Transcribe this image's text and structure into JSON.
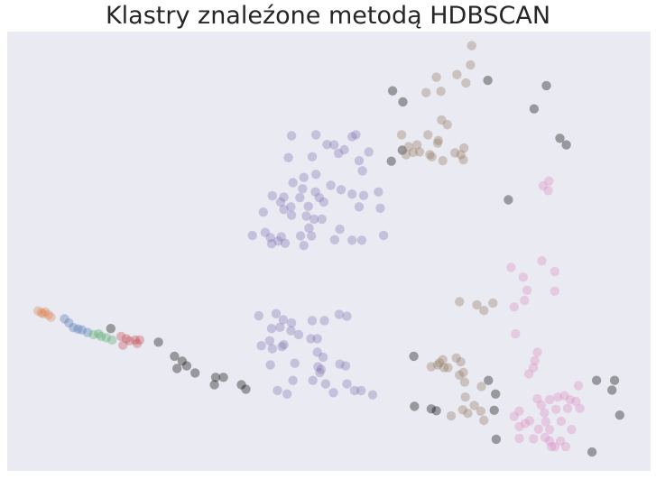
{
  "chart_data": {
    "type": "scatter",
    "title": "Klastry znaleźone metodą HDBSCAN",
    "xlabel": "",
    "ylabel": "",
    "grid": false,
    "axes_visible": false,
    "xlim": [
      0,
      100
    ],
    "ylim": [
      0,
      100
    ],
    "background": "#eaeaf2",
    "point_alpha": 0.35,
    "series": [
      {
        "cluster": "noise",
        "color": "#000000",
        "points": [
          [
            61.5,
            84.0
          ],
          [
            59.9,
            86.5
          ],
          [
            74.7,
            88.9
          ],
          [
            83.8,
            87.7
          ],
          [
            81.9,
            82.4
          ],
          [
            59.7,
            70.5
          ],
          [
            61.4,
            73.0
          ],
          [
            85.9,
            75.7
          ],
          [
            86.9,
            74.2
          ],
          [
            77.9,
            61.7
          ],
          [
            23.5,
            29.3
          ],
          [
            26.0,
            26.1
          ],
          [
            27.2,
            25.0
          ],
          [
            27.9,
            23.9
          ],
          [
            26.4,
            23.3
          ],
          [
            29.2,
            22.3
          ],
          [
            32.4,
            21.3
          ],
          [
            33.6,
            21.3
          ],
          [
            32.2,
            19.6
          ],
          [
            36.4,
            19.6
          ],
          [
            37.1,
            18.6
          ],
          [
            16.1,
            32.4
          ],
          [
            63.2,
            26.1
          ],
          [
            74.8,
            20.6
          ],
          [
            75.9,
            17.5
          ],
          [
            63.3,
            14.7
          ],
          [
            65.9,
            14.1
          ],
          [
            66.7,
            13.7
          ],
          [
            75.7,
            13.8
          ],
          [
            76.0,
            7.2
          ],
          [
            91.6,
            20.6
          ],
          [
            94.4,
            20.6
          ],
          [
            94.0,
            18.4
          ],
          [
            95.2,
            12.7
          ],
          [
            90.9,
            4.3
          ]
        ]
      },
      {
        "cluster": "0",
        "color": "#dd8452",
        "points": [
          [
            4.8,
            36.4
          ],
          [
            5.3,
            36.0
          ],
          [
            5.9,
            36.2
          ],
          [
            6.4,
            35.5
          ],
          [
            5.6,
            35.8
          ],
          [
            6.8,
            35.0
          ]
        ]
      },
      {
        "cluster": "1",
        "color": "#4c72b0",
        "points": [
          [
            8.9,
            34.6
          ],
          [
            9.6,
            33.7
          ],
          [
            10.3,
            32.6
          ],
          [
            11.0,
            32.3
          ],
          [
            11.6,
            32.1
          ],
          [
            12.5,
            31.5
          ]
        ]
      },
      {
        "cluster": "2",
        "color": "#55a868",
        "points": [
          [
            13.4,
            31.0
          ],
          [
            14.2,
            31.2
          ],
          [
            14.6,
            30.6
          ],
          [
            15.4,
            30.3
          ],
          [
            16.3,
            29.8
          ]
        ]
      },
      {
        "cluster": "3",
        "color": "#c44e52",
        "points": [
          [
            17.7,
            30.6
          ],
          [
            18.5,
            30.1
          ],
          [
            19.0,
            29.6
          ],
          [
            19.9,
            29.8
          ],
          [
            20.6,
            29.8
          ],
          [
            18.0,
            28.6
          ],
          [
            20.2,
            29.0
          ]
        ]
      },
      {
        "cluster": "4",
        "color": "#8172b3",
        "points": [
          [
            44.2,
            76.3
          ],
          [
            48.0,
            76.5
          ],
          [
            53.6,
            76.1
          ],
          [
            54.2,
            76.5
          ],
          [
            49.7,
            74.3
          ],
          [
            50.8,
            74.2
          ],
          [
            52.4,
            73.1
          ],
          [
            51.5,
            72.3
          ],
          [
            56.2,
            72.6
          ],
          [
            54.7,
            70.6
          ],
          [
            47.4,
            71.5
          ],
          [
            43.7,
            71.3
          ],
          [
            55.2,
            68.3
          ],
          [
            48.0,
            67.5
          ],
          [
            46.1,
            66.8
          ],
          [
            44.4,
            65.6
          ],
          [
            45.9,
            64.2
          ],
          [
            50.3,
            65.0
          ],
          [
            51.9,
            64.0
          ],
          [
            47.9,
            63.5
          ],
          [
            53.6,
            63.0
          ],
          [
            55.4,
            62.7
          ],
          [
            57.7,
            63.5
          ],
          [
            43.0,
            62.3
          ],
          [
            45.5,
            62.2
          ],
          [
            48.5,
            62.2
          ],
          [
            41.2,
            62.6
          ],
          [
            42.5,
            61.2
          ],
          [
            44.1,
            60.1
          ],
          [
            43.0,
            59.5
          ],
          [
            46.8,
            60.2
          ],
          [
            49.2,
            61.2
          ],
          [
            54.7,
            60.1
          ],
          [
            58.0,
            59.8
          ],
          [
            39.8,
            58.9
          ],
          [
            44.2,
            58.2
          ],
          [
            46.5,
            58.0
          ],
          [
            47.7,
            57.3
          ],
          [
            48.9,
            57.3
          ],
          [
            51.7,
            55.0
          ],
          [
            50.9,
            52.6
          ],
          [
            38.1,
            53.6
          ],
          [
            40.1,
            54.3
          ],
          [
            40.9,
            53.1
          ],
          [
            42.6,
            53.3
          ],
          [
            43.2,
            51.8
          ],
          [
            45.6,
            53.5
          ],
          [
            46.1,
            51.3
          ],
          [
            46.9,
            55.3
          ],
          [
            47.3,
            53.5
          ],
          [
            53.6,
            52.5
          ],
          [
            55.1,
            52.5
          ],
          [
            58.5,
            53.6
          ],
          [
            41.1,
            51.7
          ],
          [
            42.1,
            52.3
          ],
          [
            39.1,
            35.3
          ],
          [
            41.8,
            35.8
          ],
          [
            42.9,
            34.4
          ],
          [
            44.2,
            33.7
          ],
          [
            47.4,
            34.2
          ],
          [
            49.3,
            34.2
          ],
          [
            51.6,
            35.6
          ],
          [
            52.8,
            35.2
          ],
          [
            41.1,
            32.4
          ],
          [
            42.4,
            32.7
          ],
          [
            44.1,
            31.9
          ],
          [
            45.3,
            31.0
          ],
          [
            47.2,
            30.1
          ],
          [
            48.2,
            30.1
          ],
          [
            40.8,
            29.6
          ],
          [
            43.0,
            28.7
          ],
          [
            39.5,
            28.5
          ],
          [
            41.2,
            27.8
          ],
          [
            42.7,
            28.3
          ],
          [
            48.2,
            27.0
          ],
          [
            49.1,
            25.9
          ],
          [
            40.9,
            24.1
          ],
          [
            44.7,
            24.5
          ],
          [
            48.3,
            23.7
          ],
          [
            48.8,
            23.1
          ],
          [
            51.7,
            24.3
          ],
          [
            52.6,
            23.9
          ],
          [
            48.6,
            22.4
          ],
          [
            47.5,
            20.6
          ],
          [
            44.4,
            20.6
          ],
          [
            49.5,
            19.8
          ],
          [
            52.8,
            19.8
          ],
          [
            54.0,
            18.3
          ],
          [
            55.0,
            18.3
          ],
          [
            42.0,
            18.3
          ],
          [
            43.5,
            17.5
          ],
          [
            50.7,
            17.8
          ],
          [
            56.8,
            17.3
          ]
        ]
      },
      {
        "cluster": "5",
        "color": "#937860",
        "points": [
          [
            72.2,
            96.8
          ],
          [
            72.0,
            92.4
          ],
          [
            69.9,
            90.2
          ],
          [
            71.3,
            88.3
          ],
          [
            66.7,
            89.6
          ],
          [
            67.4,
            86.4
          ],
          [
            65.1,
            86.1
          ],
          [
            67.5,
            79.9
          ],
          [
            68.4,
            78.8
          ],
          [
            61.3,
            76.5
          ],
          [
            65.4,
            76.5
          ],
          [
            67.0,
            75.2
          ],
          [
            63.7,
            74.2
          ],
          [
            64.1,
            72.6
          ],
          [
            65.7,
            72.0
          ],
          [
            62.0,
            72.0
          ],
          [
            63.1,
            72.5
          ],
          [
            69.6,
            72.4
          ],
          [
            71.0,
            73.5
          ],
          [
            70.5,
            72.0
          ],
          [
            66.0,
            71.5
          ],
          [
            67.7,
            70.6
          ],
          [
            70.9,
            70.8
          ],
          [
            66.9,
            74.6
          ],
          [
            62.4,
            73.8
          ],
          [
            70.3,
            38.5
          ],
          [
            73.0,
            37.8
          ],
          [
            75.5,
            38.2
          ],
          [
            74.1,
            36.5
          ],
          [
            69.8,
            25.7
          ],
          [
            70.5,
            24.8
          ],
          [
            67.2,
            24.6
          ],
          [
            67.7,
            25.3
          ],
          [
            66.9,
            24.1
          ],
          [
            65.9,
            23.7
          ],
          [
            68.5,
            23.5
          ],
          [
            67.9,
            23.5
          ],
          [
            70.3,
            21.8
          ],
          [
            70.9,
            22.4
          ],
          [
            71.1,
            20.2
          ],
          [
            73.7,
            19.2
          ],
          [
            71.2,
            16.8
          ],
          [
            72.6,
            14.9
          ],
          [
            73.6,
            13.6
          ],
          [
            71.6,
            13.1
          ],
          [
            70.8,
            13.9
          ],
          [
            69.0,
            12.5
          ],
          [
            74.1,
            11.5
          ]
        ]
      },
      {
        "cluster": "6",
        "color": "#da8bc3",
        "points": [
          [
            83.3,
            64.9
          ],
          [
            84.2,
            66.0
          ],
          [
            84.1,
            63.8
          ],
          [
            78.3,
            46.3
          ],
          [
            80.2,
            44.1
          ],
          [
            83.1,
            47.8
          ],
          [
            85.1,
            45.4
          ],
          [
            80.8,
            41.1
          ],
          [
            85.1,
            40.9
          ],
          [
            78.8,
            37.3
          ],
          [
            80.4,
            38.8
          ],
          [
            79.0,
            31.2
          ],
          [
            82.4,
            27.0
          ],
          [
            82.0,
            25.1
          ],
          [
            81.8,
            23.5
          ],
          [
            81.1,
            22.1
          ],
          [
            88.8,
            19.4
          ],
          [
            82.4,
            16.4
          ],
          [
            84.3,
            16.2
          ],
          [
            85.6,
            16.8
          ],
          [
            86.6,
            17.1
          ],
          [
            87.5,
            16.2
          ],
          [
            88.4,
            15.8
          ],
          [
            89.0,
            14.2
          ],
          [
            87.1,
            14.2
          ],
          [
            83.0,
            15.0
          ],
          [
            85.3,
            14.0
          ],
          [
            83.5,
            13.2
          ],
          [
            79.6,
            13.6
          ],
          [
            78.8,
            12.4
          ],
          [
            81.2,
            11.4
          ],
          [
            83.7,
            11.2
          ],
          [
            86.1,
            11.3
          ],
          [
            79.6,
            10.1
          ],
          [
            80.5,
            10.8
          ],
          [
            82.6,
            9.5
          ],
          [
            84.3,
            9.4
          ],
          [
            87.7,
            9.4
          ],
          [
            81.8,
            7.3
          ],
          [
            83.6,
            7.6
          ],
          [
            84.3,
            6.8
          ],
          [
            86.0,
            6.8
          ],
          [
            79.6,
            7.4
          ],
          [
            84.6,
            5.5
          ],
          [
            85.1,
            5.5
          ],
          [
            86.8,
            5.5
          ]
        ]
      }
    ]
  }
}
